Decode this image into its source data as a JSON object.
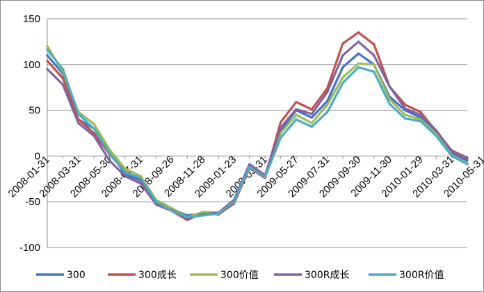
{
  "chart_data": {
    "type": "line",
    "title": "",
    "xlabel": "",
    "ylabel": "",
    "ylim": [
      -100,
      150
    ],
    "yticks": [
      -100,
      -50,
      0,
      50,
      100,
      150
    ],
    "x_tick_labels": [
      "2008-01-31",
      "2008-03-31",
      "2008-05-30",
      "2008-07-31",
      "2008-09-26",
      "2008-11-28",
      "2009-01-23",
      "2009-03-31",
      "2009-05-27",
      "2009-07-31",
      "2009-09-30",
      "2009-11-30",
      "2010-01-29",
      "2010-03-31",
      "2010-05-31"
    ],
    "grid": "horizontal",
    "legend": "bottom",
    "series": [
      {
        "name": "300",
        "color": "#4472C4",
        "values": [
          110,
          90,
          40,
          30,
          5,
          -20,
          -27,
          -50,
          -58,
          -65,
          -63,
          -62,
          -50,
          -12,
          -22,
          28,
          50,
          42,
          60,
          97,
          112,
          100,
          65,
          50,
          42,
          25,
          3,
          -5
        ]
      },
      {
        "name": "300成长",
        "color": "#C0504D",
        "values": [
          104,
          85,
          40,
          25,
          2,
          -17,
          -25,
          -53,
          -60,
          -70,
          -62,
          -64,
          -52,
          -13,
          -24,
          37,
          59,
          51,
          74,
          123,
          135,
          122,
          76,
          56,
          48,
          27,
          6,
          -2
        ]
      },
      {
        "name": "300价值",
        "color": "#9BBB59",
        "values": [
          120,
          92,
          48,
          35,
          7,
          -14,
          -22,
          -48,
          -57,
          -67,
          -61,
          -62,
          -49,
          -11,
          -22,
          25,
          45,
          36,
          56,
          86,
          101,
          100,
          62,
          45,
          40,
          24,
          1,
          -8
        ]
      },
      {
        "name": "300R成长",
        "color": "#8064A2",
        "values": [
          95,
          78,
          36,
          22,
          -5,
          -22,
          -30,
          -53,
          -59,
          -68,
          -64,
          -62,
          -48,
          -9,
          -21,
          31,
          51,
          46,
          70,
          110,
          125,
          110,
          76,
          52,
          45,
          28,
          5,
          -3
        ]
      },
      {
        "name": "300R价值",
        "color": "#4BACC6",
        "values": [
          116,
          95,
          46,
          30,
          3,
          -18,
          -24,
          -50,
          -60,
          -67,
          -65,
          -63,
          -50,
          -12,
          -23,
          20,
          40,
          32,
          48,
          80,
          97,
          92,
          57,
          41,
          38,
          22,
          0,
          -9
        ]
      }
    ]
  }
}
